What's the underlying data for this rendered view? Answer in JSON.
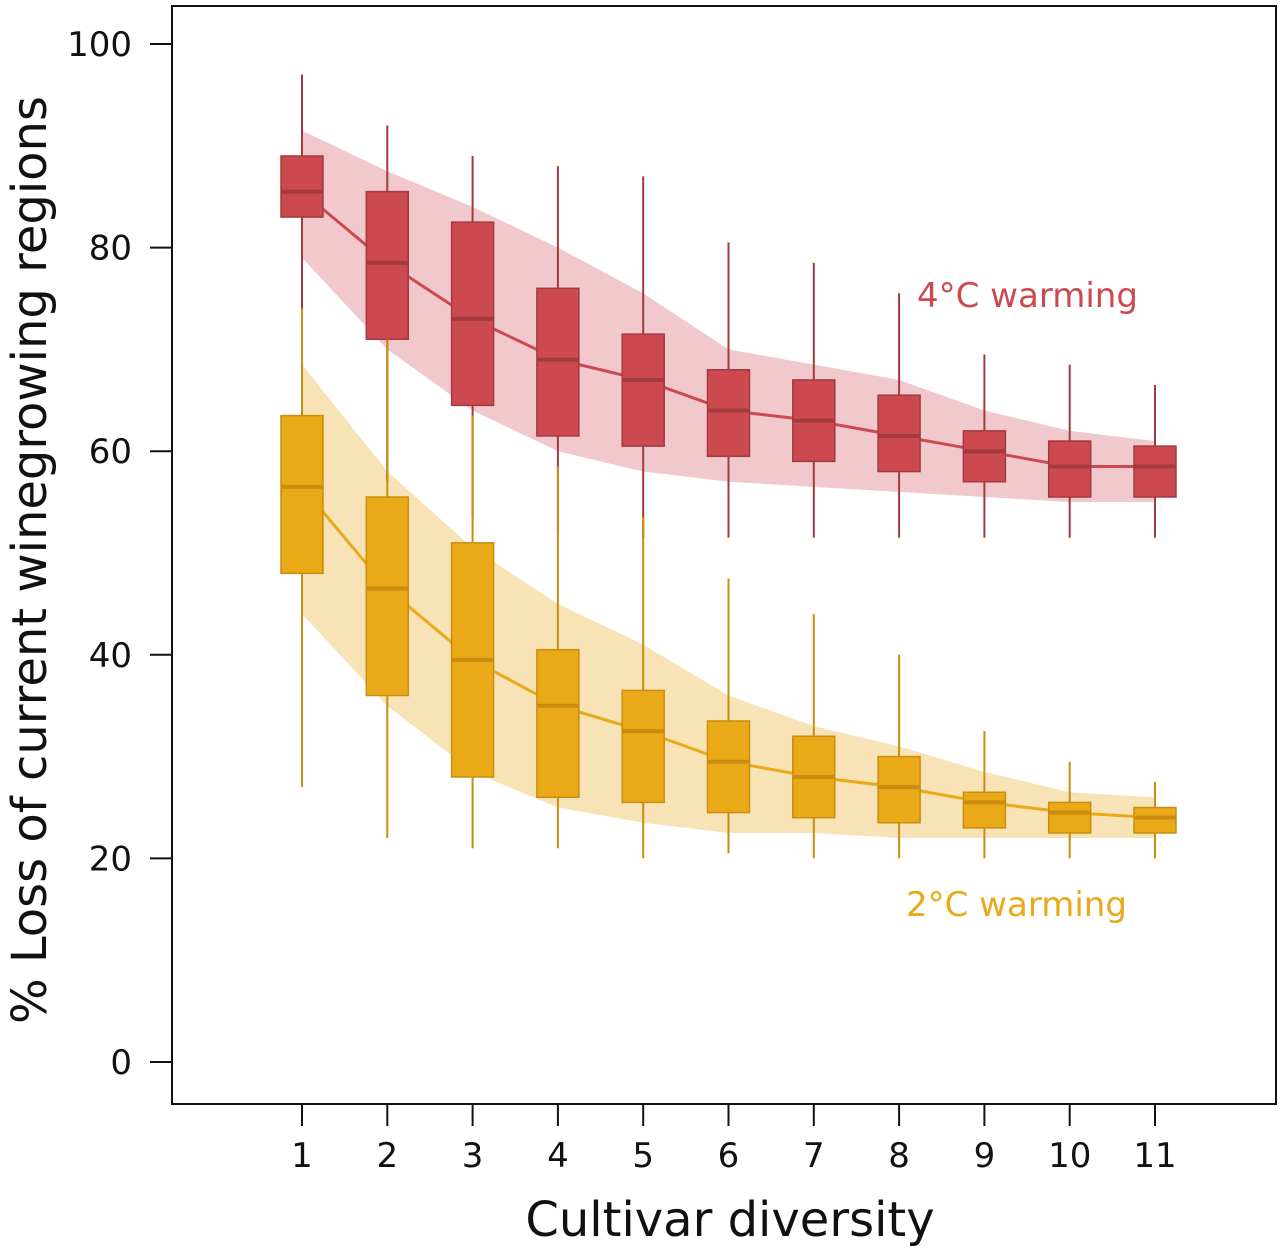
{
  "chart_data": {
    "type": "boxplot",
    "xlabel": "Cultivar diversity",
    "ylabel": "% Loss of current winegrowing regions",
    "ylim": [
      0,
      100
    ],
    "y_ticks": [
      0,
      20,
      40,
      60,
      80,
      100
    ],
    "x_ticks": [
      "1",
      "2",
      "3",
      "4",
      "5",
      "6",
      "7",
      "8",
      "9",
      "10",
      "11"
    ],
    "grid": false,
    "series": [
      {
        "name": "4°C warming",
        "label": "4°C warming",
        "color": "#cc4a4f",
        "dark_color": "#a23a40",
        "band_color": "#f1c9cc",
        "band_upper": [
          91.5,
          87.5,
          84,
          80,
          75.5,
          70,
          68.5,
          67,
          64,
          62,
          61
        ],
        "band_lower": [
          79,
          70,
          64,
          60,
          58,
          57,
          56.5,
          56,
          55.5,
          55,
          55
        ],
        "boxes": [
          {
            "x": 1,
            "whisker_low": 74,
            "q1": 83,
            "median": 85.5,
            "q3": 89,
            "whisker_high": 97
          },
          {
            "x": 2,
            "whisker_low": 57,
            "q1": 71,
            "median": 78.5,
            "q3": 85.5,
            "whisker_high": 92
          },
          {
            "x": 3,
            "whisker_low": 53.5,
            "q1": 64.5,
            "median": 73,
            "q3": 82.5,
            "whisker_high": 89
          },
          {
            "x": 4,
            "whisker_low": 52,
            "q1": 61.5,
            "median": 69,
            "q3": 76,
            "whisker_high": 88
          },
          {
            "x": 5,
            "whisker_low": 51.5,
            "q1": 60.5,
            "median": 67,
            "q3": 71.5,
            "whisker_high": 87
          },
          {
            "x": 6,
            "whisker_low": 51.5,
            "q1": 59.5,
            "median": 64,
            "q3": 68,
            "whisker_high": 80.5
          },
          {
            "x": 7,
            "whisker_low": 51.5,
            "q1": 59,
            "median": 63,
            "q3": 67,
            "whisker_high": 78.5
          },
          {
            "x": 8,
            "whisker_low": 51.5,
            "q1": 58,
            "median": 61.5,
            "q3": 65.5,
            "whisker_high": 75.5
          },
          {
            "x": 9,
            "whisker_low": 51.5,
            "q1": 57,
            "median": 60,
            "q3": 62,
            "whisker_high": 69.5
          },
          {
            "x": 10,
            "whisker_low": 51.5,
            "q1": 55.5,
            "median": 58.5,
            "q3": 61,
            "whisker_high": 68.5
          },
          {
            "x": 11,
            "whisker_low": 51.5,
            "q1": 55.5,
            "median": 58.5,
            "q3": 60.5,
            "whisker_high": 66.5
          }
        ]
      },
      {
        "name": "2°C warming",
        "label": "2°C warming",
        "color": "#eaaa18",
        "dark_color": "#c98d10",
        "band_color": "#f8e3b6",
        "band_upper": [
          68.5,
          58,
          50.5,
          45,
          41,
          36,
          33,
          31,
          28.5,
          26.5,
          26
        ],
        "band_lower": [
          44,
          35,
          28.5,
          25,
          23.5,
          22.5,
          22.5,
          22,
          22,
          22,
          22
        ],
        "boxes": [
          {
            "x": 1,
            "whisker_low": 27,
            "q1": 48,
            "median": 56.5,
            "q3": 63.5,
            "whisker_high": 74
          },
          {
            "x": 2,
            "whisker_low": 22,
            "q1": 36,
            "median": 46.5,
            "q3": 55.5,
            "whisker_high": 71
          },
          {
            "x": 3,
            "whisker_low": 21,
            "q1": 28,
            "median": 39.5,
            "q3": 51,
            "whisker_high": 63.5
          },
          {
            "x": 4,
            "whisker_low": 21,
            "q1": 26,
            "median": 35,
            "q3": 40.5,
            "whisker_high": 58.5
          },
          {
            "x": 5,
            "whisker_low": 20,
            "q1": 25.5,
            "median": 32.5,
            "q3": 36.5,
            "whisker_high": 53.5
          },
          {
            "x": 6,
            "whisker_low": 20.5,
            "q1": 24.5,
            "median": 29.5,
            "q3": 33.5,
            "whisker_high": 47.5
          },
          {
            "x": 7,
            "whisker_low": 20,
            "q1": 24,
            "median": 28,
            "q3": 32,
            "whisker_high": 44
          },
          {
            "x": 8,
            "whisker_low": 20,
            "q1": 23.5,
            "median": 27,
            "q3": 30,
            "whisker_high": 40
          },
          {
            "x": 9,
            "whisker_low": 20,
            "q1": 23,
            "median": 25.5,
            "q3": 26.5,
            "whisker_high": 32.5
          },
          {
            "x": 10,
            "whisker_low": 20,
            "q1": 22.5,
            "median": 24.5,
            "q3": 25.5,
            "whisker_high": 29.5
          },
          {
            "x": 11,
            "whisker_low": 20,
            "q1": 22.5,
            "median": 24,
            "q3": 25,
            "whisker_high": 27.5
          }
        ]
      }
    ]
  }
}
